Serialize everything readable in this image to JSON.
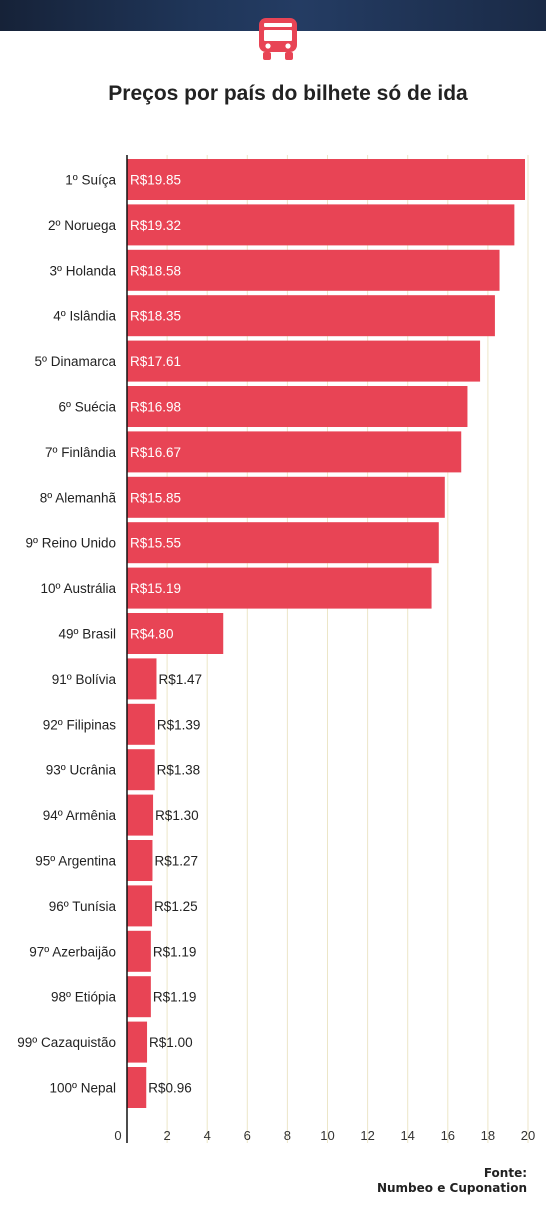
{
  "header": {
    "icon": "bus-icon",
    "accent": "#e84455"
  },
  "title": "Preços por país do bilhete só de ida",
  "source": {
    "label": "Fonte:",
    "text": "Numbeo e Cuponation"
  },
  "chart_data": {
    "type": "bar",
    "orientation": "horizontal",
    "title": "Preços por país do bilhete só de ida",
    "categories": [
      "1º Suíça",
      "2º Noruega",
      "3º Holanda",
      "4º Islândia",
      "5º Dinamarca",
      "6º Suécia",
      "7º Finlândia",
      "8º Alemanhã",
      "9º Reino Unido",
      "10º Austrália",
      "49º Brasil",
      "91º Bolívia",
      "92º Filipinas",
      "93º Ucrânia",
      "94º Armênia",
      "95º Argentina",
      "96º Tunísia",
      "97º Azerbaijão",
      "98º Etiópia",
      "99º Cazaquistão",
      "100º Nepal"
    ],
    "values": [
      19.85,
      19.32,
      18.58,
      18.35,
      17.61,
      16.98,
      16.67,
      15.85,
      15.55,
      15.19,
      4.8,
      1.47,
      1.39,
      1.38,
      1.3,
      1.27,
      1.25,
      1.19,
      1.19,
      1.0,
      0.96
    ],
    "data_labels": [
      "R$19.85",
      "R$19.32",
      "R$18.58",
      "R$18.35",
      "R$17.61",
      "R$16.98",
      "R$16.67",
      "R$15.85",
      "R$15.55",
      "R$15.19",
      "R$4.80",
      "R$1.47",
      "R$1.39",
      "R$1.38",
      "R$1.30",
      "R$1.27",
      "R$1.25",
      "R$1.19",
      "R$1.19",
      "R$1.00",
      "R$0.96"
    ],
    "xticks": [
      0,
      2,
      4,
      6,
      8,
      10,
      12,
      14,
      16,
      18,
      20
    ],
    "xlim": [
      0,
      20
    ],
    "grid": true,
    "bar_color": "#e84455",
    "grid_color": "#ece6c8"
  }
}
